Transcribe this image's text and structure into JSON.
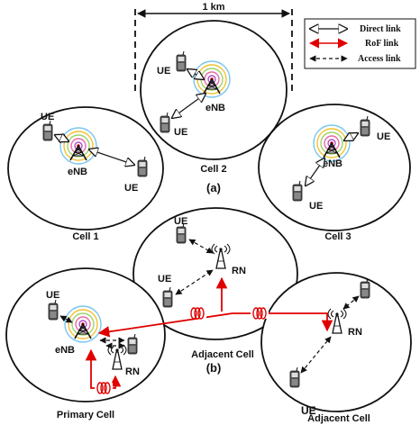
{
  "scale_label": "1 km",
  "legend": {
    "direct": "Direct link",
    "rof": "RoF link",
    "access": "Access link"
  },
  "part_a": {
    "label": "(a)",
    "cell1": {
      "name": "Cell 1",
      "ue1": "UE",
      "ue2": "UE",
      "enb": "eNB"
    },
    "cell2": {
      "name": "Cell 2",
      "ue1": "UE",
      "ue2": "UE",
      "enb": "eNB"
    },
    "cell3": {
      "name": "Cell 3",
      "ue1": "UE",
      "ue2": "UE",
      "enb": "eNB"
    }
  },
  "part_b": {
    "label": "(b)",
    "adjacent_top": {
      "name": "Adjacent Cell",
      "ue1": "UE",
      "ue2": "UE",
      "rn": "RN"
    },
    "primary": {
      "name": "Primary Cell",
      "ue": "UE",
      "enb": "eNB",
      "rn": "RN"
    },
    "adjacent_right": {
      "name": "Adjacent Cell",
      "rn": "RN",
      "ue": "UE"
    }
  },
  "colors": {
    "rof": "#e00000",
    "line": "#111111"
  }
}
